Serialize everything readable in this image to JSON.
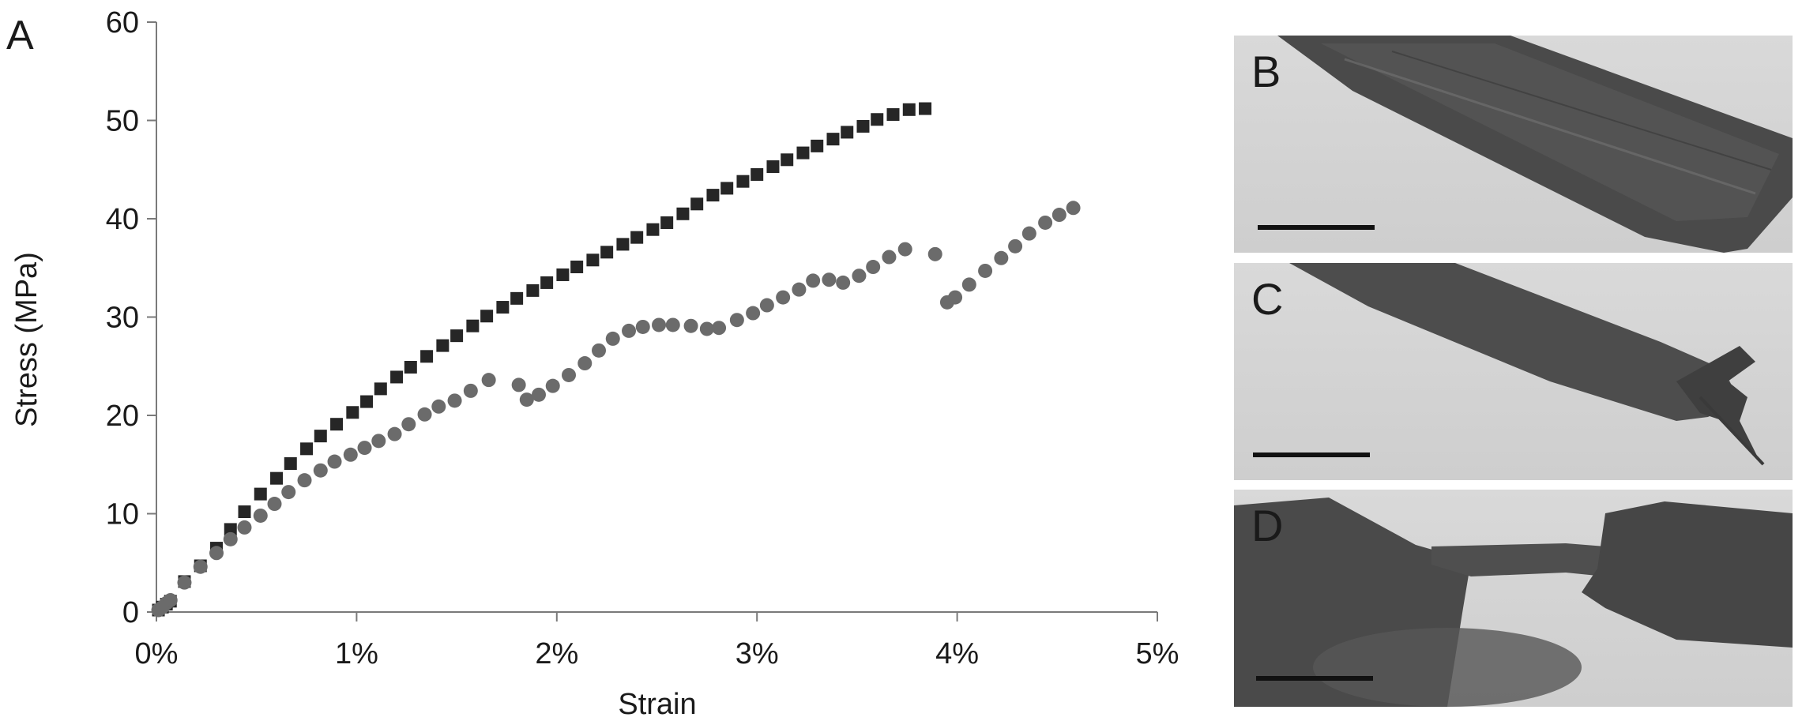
{
  "figure": {
    "panel_a_label": "A"
  },
  "chart_data": {
    "type": "scatter",
    "title": "",
    "xlabel": "Strain",
    "ylabel": "Stress (MPa)",
    "xlim": [
      0,
      5
    ],
    "ylim": [
      0,
      60
    ],
    "x_ticks": [
      {
        "value": 0,
        "label": "0%"
      },
      {
        "value": 1,
        "label": "1%"
      },
      {
        "value": 2,
        "label": "2%"
      },
      {
        "value": 3,
        "label": "3%"
      },
      {
        "value": 4,
        "label": "4%"
      },
      {
        "value": 5,
        "label": "5%"
      }
    ],
    "y_ticks": [
      {
        "value": 0,
        "label": "0"
      },
      {
        "value": 10,
        "label": "10"
      },
      {
        "value": 20,
        "label": "20"
      },
      {
        "value": 30,
        "label": "30"
      },
      {
        "value": 40,
        "label": "40"
      },
      {
        "value": 50,
        "label": "50"
      },
      {
        "value": 60,
        "label": "60"
      }
    ],
    "grid": false,
    "series": [
      {
        "marker": "square",
        "color": "#262626",
        "points": [
          [
            0.01,
            0.2
          ],
          [
            0.03,
            0.5
          ],
          [
            0.05,
            0.8
          ],
          [
            0.07,
            1.1
          ],
          [
            0.14,
            3.1
          ],
          [
            0.22,
            4.7
          ],
          [
            0.3,
            6.5
          ],
          [
            0.37,
            8.4
          ],
          [
            0.44,
            10.2
          ],
          [
            0.52,
            12.0
          ],
          [
            0.6,
            13.6
          ],
          [
            0.67,
            15.1
          ],
          [
            0.75,
            16.6
          ],
          [
            0.82,
            17.9
          ],
          [
            0.9,
            19.1
          ],
          [
            0.98,
            20.3
          ],
          [
            1.05,
            21.4
          ],
          [
            1.12,
            22.7
          ],
          [
            1.2,
            23.9
          ],
          [
            1.27,
            24.9
          ],
          [
            1.35,
            26.0
          ],
          [
            1.43,
            27.1
          ],
          [
            1.5,
            28.1
          ],
          [
            1.58,
            29.1
          ],
          [
            1.65,
            30.1
          ],
          [
            1.73,
            31.0
          ],
          [
            1.8,
            31.9
          ],
          [
            1.88,
            32.7
          ],
          [
            1.95,
            33.5
          ],
          [
            2.03,
            34.3
          ],
          [
            2.1,
            35.1
          ],
          [
            2.18,
            35.8
          ],
          [
            2.25,
            36.6
          ],
          [
            2.33,
            37.4
          ],
          [
            2.4,
            38.1
          ],
          [
            2.48,
            38.9
          ],
          [
            2.55,
            39.6
          ],
          [
            2.63,
            40.5
          ],
          [
            2.7,
            41.5
          ],
          [
            2.78,
            42.4
          ],
          [
            2.85,
            43.1
          ],
          [
            2.93,
            43.8
          ],
          [
            3.0,
            44.5
          ],
          [
            3.08,
            45.3
          ],
          [
            3.15,
            46.0
          ],
          [
            3.23,
            46.7
          ],
          [
            3.3,
            47.4
          ],
          [
            3.38,
            48.1
          ],
          [
            3.45,
            48.8
          ],
          [
            3.53,
            49.4
          ],
          [
            3.6,
            50.1
          ],
          [
            3.68,
            50.6
          ],
          [
            3.76,
            51.1
          ],
          [
            3.84,
            51.2
          ]
        ]
      },
      {
        "marker": "circle",
        "color": "#6b6b6b",
        "points": [
          [
            0.01,
            0.2
          ],
          [
            0.03,
            0.5
          ],
          [
            0.05,
            0.9
          ],
          [
            0.07,
            1.2
          ],
          [
            0.14,
            3.0
          ],
          [
            0.22,
            4.6
          ],
          [
            0.3,
            6.0
          ],
          [
            0.37,
            7.4
          ],
          [
            0.44,
            8.6
          ],
          [
            0.52,
            9.8
          ],
          [
            0.59,
            11.0
          ],
          [
            0.66,
            12.2
          ],
          [
            0.74,
            13.4
          ],
          [
            0.82,
            14.4
          ],
          [
            0.89,
            15.3
          ],
          [
            0.97,
            16.0
          ],
          [
            1.04,
            16.7
          ],
          [
            1.11,
            17.4
          ],
          [
            1.19,
            18.1
          ],
          [
            1.26,
            19.1
          ],
          [
            1.34,
            20.1
          ],
          [
            1.41,
            20.9
          ],
          [
            1.49,
            21.5
          ],
          [
            1.57,
            22.5
          ],
          [
            1.66,
            23.6
          ],
          [
            1.81,
            23.1
          ],
          [
            1.85,
            21.6
          ],
          [
            1.91,
            22.1
          ],
          [
            1.98,
            23.0
          ],
          [
            2.06,
            24.1
          ],
          [
            2.14,
            25.3
          ],
          [
            2.21,
            26.6
          ],
          [
            2.28,
            27.8
          ],
          [
            2.36,
            28.6
          ],
          [
            2.43,
            29.0
          ],
          [
            2.51,
            29.2
          ],
          [
            2.58,
            29.2
          ],
          [
            2.67,
            29.1
          ],
          [
            2.75,
            28.8
          ],
          [
            2.81,
            28.9
          ],
          [
            2.9,
            29.7
          ],
          [
            2.98,
            30.4
          ],
          [
            3.05,
            31.2
          ],
          [
            3.13,
            32.0
          ],
          [
            3.21,
            32.8
          ],
          [
            3.28,
            33.7
          ],
          [
            3.36,
            33.8
          ],
          [
            3.43,
            33.5
          ],
          [
            3.51,
            34.2
          ],
          [
            3.58,
            35.1
          ],
          [
            3.66,
            36.1
          ],
          [
            3.74,
            36.9
          ],
          [
            3.89,
            36.4
          ],
          [
            3.95,
            31.5
          ],
          [
            3.99,
            32.0
          ],
          [
            4.06,
            33.3
          ],
          [
            4.14,
            34.7
          ],
          [
            4.22,
            36.0
          ],
          [
            4.29,
            37.2
          ],
          [
            4.36,
            38.5
          ],
          [
            4.44,
            39.6
          ],
          [
            4.51,
            40.4
          ],
          [
            4.58,
            41.1
          ]
        ]
      }
    ]
  },
  "panels": [
    {
      "letter": "B"
    },
    {
      "letter": "C"
    },
    {
      "letter": "D"
    }
  ]
}
